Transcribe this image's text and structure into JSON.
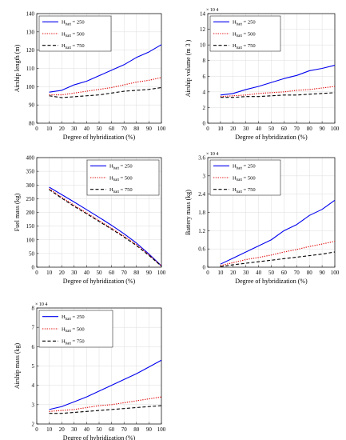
{
  "chart_data": [
    {
      "type": "line",
      "xlabel": "Degree of hybridization (%)",
      "ylabel": "Airship length (m)",
      "exponent": "",
      "xlim": [
        0,
        100
      ],
      "ylim": [
        80,
        140
      ],
      "xticks": [
        0,
        10,
        20,
        30,
        40,
        50,
        60,
        70,
        80,
        90,
        100
      ],
      "yticks": [
        80,
        90,
        100,
        110,
        120,
        130,
        140
      ],
      "legend_position": "top-left",
      "grid": true,
      "x": [
        10,
        20,
        30,
        40,
        50,
        60,
        70,
        80,
        90,
        100
      ],
      "series": [
        {
          "name": "H",
          "sub": "batt",
          "suffix": " = 250",
          "color": "#0000ee",
          "dash": "solid",
          "values": [
            97,
            98,
            101,
            103,
            106,
            109,
            112,
            116,
            119,
            123
          ]
        },
        {
          "name": "H",
          "sub": "batt",
          "suffix": " = 500",
          "color": "#e00000",
          "dash": "dotted",
          "values": [
            95.5,
            95.5,
            96.5,
            97.5,
            98.5,
            99.5,
            101,
            102.5,
            103.5,
            105
          ]
        },
        {
          "name": "H",
          "sub": "batt",
          "suffix": " = 750",
          "color": "#000000",
          "dash": "dashed",
          "values": [
            95,
            94,
            94.5,
            95,
            95.5,
            96.5,
            97.5,
            98,
            98.5,
            99.5
          ]
        }
      ]
    },
    {
      "type": "line",
      "xlabel": "Degree of hybridization (%)",
      "ylabel": "Airship volume (m 3 )",
      "exponent": "× 10 4",
      "xlim": [
        0,
        100
      ],
      "ylim": [
        0,
        14
      ],
      "xticks": [
        0,
        10,
        20,
        30,
        40,
        50,
        60,
        70,
        80,
        90,
        100
      ],
      "yticks": [
        0,
        2,
        4,
        6,
        8,
        10,
        12,
        14
      ],
      "legend_position": "top-left",
      "grid": true,
      "x": [
        10,
        20,
        30,
        40,
        50,
        60,
        70,
        80,
        90,
        100
      ],
      "series": [
        {
          "name": "H",
          "sub": "batt",
          "suffix": " = 250",
          "color": "#0000ee",
          "dash": "solid",
          "values": [
            3.6,
            3.8,
            4.3,
            4.7,
            5.2,
            5.7,
            6.1,
            6.7,
            7.0,
            7.4
          ]
        },
        {
          "name": "H",
          "sub": "batt",
          "suffix": " = 500",
          "color": "#e00000",
          "dash": "dotted",
          "values": [
            3.4,
            3.5,
            3.6,
            3.8,
            3.9,
            4.0,
            4.2,
            4.3,
            4.5,
            4.7
          ]
        },
        {
          "name": "H",
          "sub": "batt",
          "suffix": " = 750",
          "color": "#000000",
          "dash": "dashed",
          "values": [
            3.3,
            3.3,
            3.4,
            3.4,
            3.5,
            3.6,
            3.6,
            3.7,
            3.8,
            3.9
          ]
        }
      ]
    },
    {
      "type": "line",
      "xlabel": "Degree of hybridization (%)",
      "ylabel": "Fuel mass (kg)",
      "exponent": "",
      "xlim": [
        0,
        100
      ],
      "ylim": [
        0,
        400
      ],
      "xticks": [
        0,
        10,
        20,
        30,
        40,
        50,
        60,
        70,
        80,
        90,
        100
      ],
      "yticks": [
        0,
        50,
        100,
        150,
        200,
        250,
        300,
        350,
        400
      ],
      "legend_position": "top-right",
      "grid": true,
      "x": [
        10,
        20,
        30,
        40,
        50,
        60,
        70,
        80,
        90,
        100
      ],
      "series": [
        {
          "name": "H",
          "sub": "batt",
          "suffix": " = 250",
          "color": "#0000ee",
          "dash": "solid",
          "values": [
            292,
            265,
            238,
            210,
            182,
            153,
            122,
            88,
            48,
            5
          ]
        },
        {
          "name": "H",
          "sub": "batt",
          "suffix": " = 500",
          "color": "#e00000",
          "dash": "dotted",
          "values": [
            286,
            255,
            226,
            198,
            170,
            142,
            113,
            82,
            45,
            4
          ]
        },
        {
          "name": "H",
          "sub": "batt",
          "suffix": " = 750",
          "color": "#000000",
          "dash": "dashed",
          "values": [
            283,
            252,
            222,
            195,
            167,
            139,
            110,
            79,
            43,
            4
          ]
        }
      ]
    },
    {
      "type": "line",
      "xlabel": "Degree of hybridization (%)",
      "ylabel": "Battery mass (kg)",
      "exponent": "× 10 4",
      "xlim": [
        0,
        100
      ],
      "ylim": [
        0,
        3.6
      ],
      "xticks": [
        0,
        10,
        20,
        30,
        40,
        50,
        60,
        70,
        80,
        90,
        100
      ],
      "yticks": [
        0,
        0.6,
        1.2,
        1.8,
        2.4,
        3,
        3.6
      ],
      "legend_position": "top-left",
      "grid": true,
      "x": [
        10,
        20,
        30,
        40,
        50,
        60,
        70,
        80,
        90,
        100
      ],
      "series": [
        {
          "name": "H",
          "sub": "batt",
          "suffix": " = 250",
          "color": "#0000ee",
          "dash": "solid",
          "values": [
            0.1,
            0.3,
            0.5,
            0.7,
            0.9,
            1.2,
            1.4,
            1.7,
            1.9,
            2.2
          ]
        },
        {
          "name": "H",
          "sub": "batt",
          "suffix": " = 500",
          "color": "#e00000",
          "dash": "dotted",
          "values": [
            0.05,
            0.15,
            0.25,
            0.32,
            0.4,
            0.5,
            0.58,
            0.68,
            0.76,
            0.85
          ]
        },
        {
          "name": "H",
          "sub": "batt",
          "suffix": " = 750",
          "color": "#000000",
          "dash": "dashed",
          "values": [
            0.02,
            0.08,
            0.13,
            0.18,
            0.23,
            0.28,
            0.33,
            0.38,
            0.43,
            0.5
          ]
        }
      ]
    },
    {
      "type": "line",
      "xlabel": "Degree of hybridization (%)",
      "ylabel": "Airship mass (kg)",
      "exponent": "× 10 4",
      "xlim": [
        0,
        100
      ],
      "ylim": [
        2,
        8
      ],
      "xticks": [
        0,
        10,
        20,
        30,
        40,
        50,
        60,
        70,
        80,
        90,
        100
      ],
      "yticks": [
        2,
        3,
        4,
        5,
        6,
        7,
        8
      ],
      "legend_position": "top-left",
      "grid": true,
      "x": [
        10,
        20,
        30,
        40,
        50,
        60,
        70,
        80,
        90,
        100
      ],
      "series": [
        {
          "name": "H",
          "sub": "batt",
          "suffix": " = 250",
          "color": "#0000ee",
          "dash": "solid",
          "values": [
            2.75,
            2.9,
            3.15,
            3.4,
            3.7,
            4.0,
            4.3,
            4.6,
            4.95,
            5.3
          ]
        },
        {
          "name": "H",
          "sub": "batt",
          "suffix": " = 500",
          "color": "#e00000",
          "dash": "dotted",
          "values": [
            2.65,
            2.7,
            2.75,
            2.85,
            2.95,
            3.0,
            3.1,
            3.2,
            3.3,
            3.4
          ]
        },
        {
          "name": "H",
          "sub": "batt",
          "suffix": " = 750",
          "color": "#000000",
          "dash": "dashed",
          "values": [
            2.55,
            2.55,
            2.6,
            2.65,
            2.7,
            2.75,
            2.8,
            2.85,
            2.9,
            2.95
          ]
        }
      ]
    }
  ]
}
